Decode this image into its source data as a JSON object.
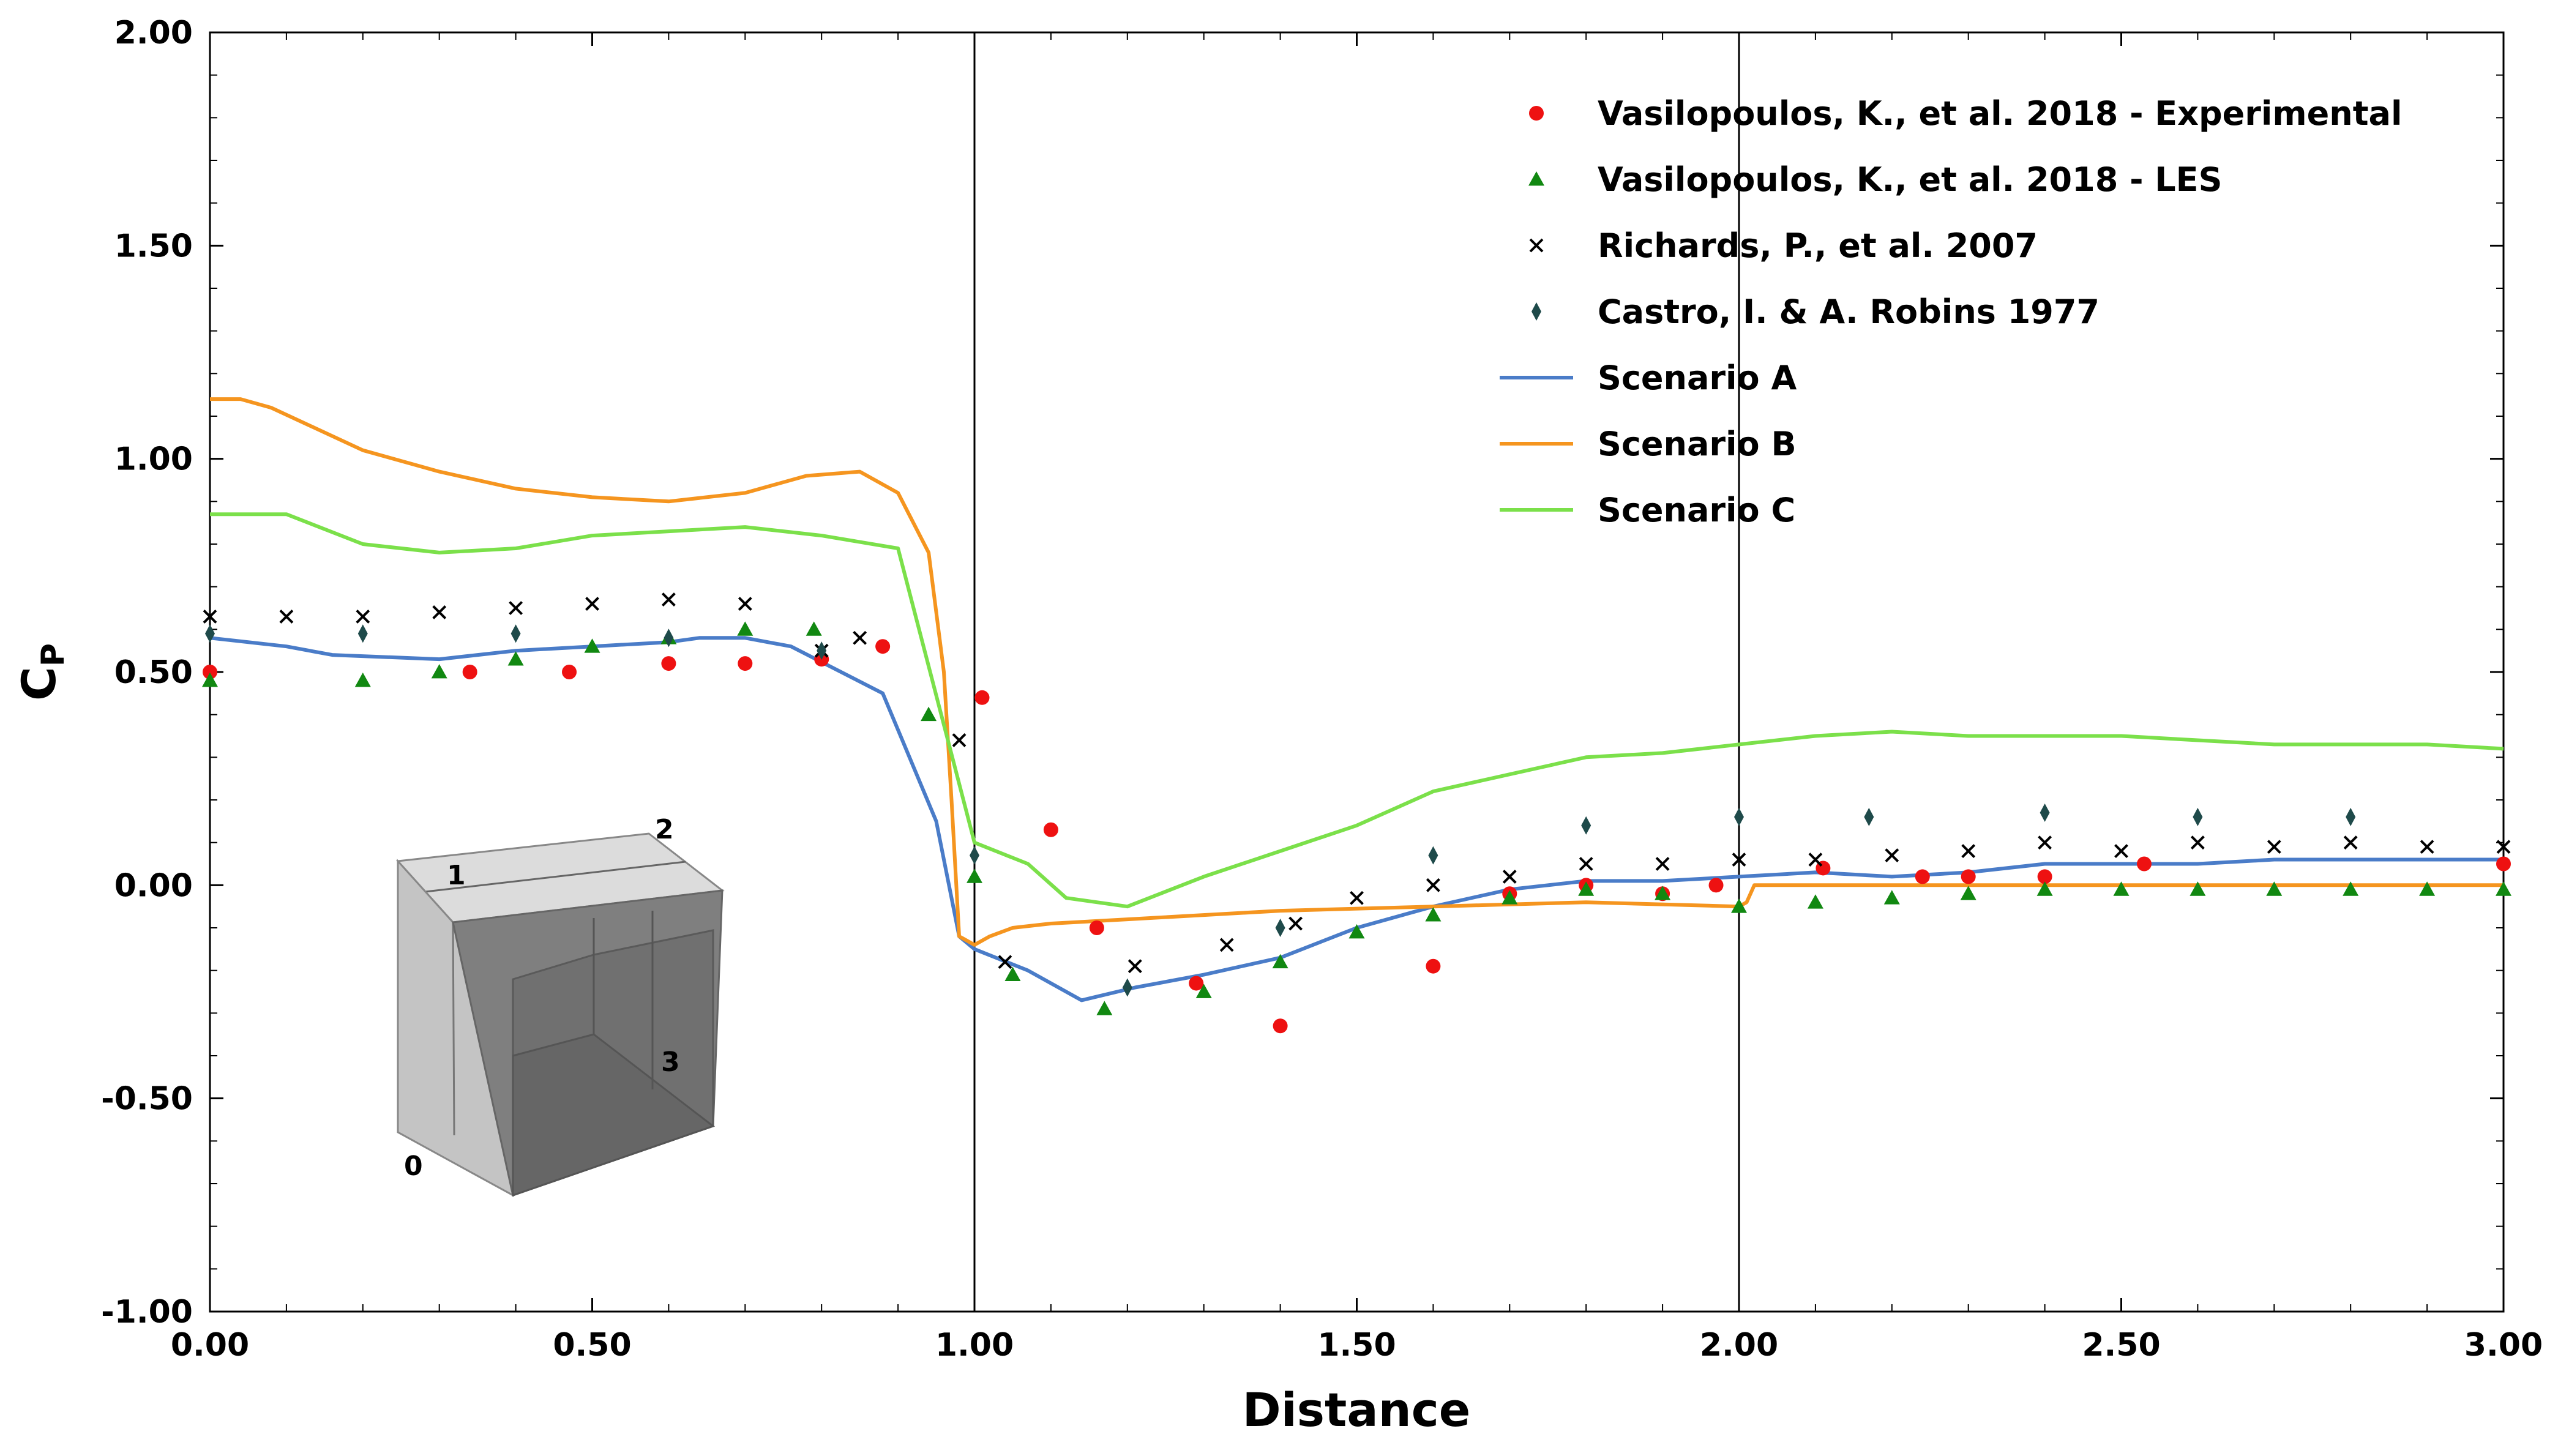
{
  "chart_data": {
    "type": "scatter",
    "title": "",
    "xlabel": "Distance",
    "ylabel_main": "C",
    "ylabel_sub": "P",
    "xlim": [
      0,
      3
    ],
    "ylim": [
      -1,
      2
    ],
    "xticks": [
      0,
      0.5,
      1,
      1.5,
      2,
      2.5,
      3
    ],
    "yticks": [
      -1,
      -0.5,
      0,
      0.5,
      1,
      1.5,
      2
    ],
    "xtick_labels": [
      "0.00",
      "0.50",
      "1.00",
      "1.50",
      "2.00",
      "2.50",
      "3.00"
    ],
    "ytick_labels": [
      "-1.00",
      "-0.50",
      "0.00",
      "0.50",
      "1.00",
      "1.50",
      "2.00"
    ],
    "vlines": [
      1.0,
      2.0
    ],
    "grid": false,
    "legend_position": "top-right",
    "series": [
      {
        "name": "Vasilopoulos, K., et al. 2018 - Experimental",
        "kind": "marker",
        "marker": "circle",
        "color": "#ee1111",
        "x": [
          0.0,
          0.34,
          0.47,
          0.6,
          0.7,
          0.8,
          0.88,
          1.01,
          1.1,
          1.16,
          1.29,
          1.4,
          1.6,
          1.7,
          1.8,
          1.9,
          1.97,
          2.11,
          2.24,
          2.3,
          2.4,
          2.53,
          3.0
        ],
        "y": [
          0.5,
          0.5,
          0.5,
          0.52,
          0.52,
          0.53,
          0.56,
          0.44,
          0.13,
          -0.1,
          -0.23,
          -0.33,
          -0.19,
          -0.02,
          0.0,
          -0.02,
          0.0,
          0.04,
          0.02,
          0.02,
          0.02,
          0.05,
          0.05
        ]
      },
      {
        "name": "Vasilopoulos, K., et al. 2018 - LES",
        "kind": "marker",
        "marker": "triangle",
        "color": "#118811",
        "x": [
          0.0,
          0.2,
          0.3,
          0.4,
          0.5,
          0.6,
          0.7,
          0.79,
          0.94,
          1.0,
          1.05,
          1.17,
          1.3,
          1.4,
          1.5,
          1.6,
          1.7,
          1.8,
          1.9,
          2.0,
          2.1,
          2.2,
          2.3,
          2.4,
          2.5,
          2.6,
          2.7,
          2.8,
          2.9,
          3.0
        ],
        "y": [
          0.48,
          0.48,
          0.5,
          0.53,
          0.56,
          0.58,
          0.6,
          0.6,
          0.4,
          0.02,
          -0.21,
          -0.29,
          -0.25,
          -0.18,
          -0.11,
          -0.07,
          -0.03,
          -0.01,
          -0.02,
          -0.05,
          -0.04,
          -0.03,
          -0.02,
          -0.01,
          -0.01,
          -0.01,
          -0.01,
          -0.01,
          -0.01,
          -0.01
        ]
      },
      {
        "name": "Richards, P., et al. 2007",
        "kind": "marker",
        "marker": "x",
        "color": "#000000",
        "x": [
          0.0,
          0.1,
          0.2,
          0.3,
          0.4,
          0.5,
          0.6,
          0.7,
          0.8,
          0.85,
          0.98,
          1.04,
          1.21,
          1.33,
          1.42,
          1.5,
          1.6,
          1.7,
          1.8,
          1.9,
          2.0,
          2.1,
          2.2,
          2.3,
          2.4,
          2.5,
          2.6,
          2.7,
          2.8,
          2.9,
          3.0
        ],
        "y": [
          0.63,
          0.63,
          0.63,
          0.64,
          0.65,
          0.66,
          0.67,
          0.66,
          0.55,
          0.58,
          0.34,
          -0.18,
          -0.19,
          -0.14,
          -0.09,
          -0.03,
          0.0,
          0.02,
          0.05,
          0.05,
          0.06,
          0.06,
          0.07,
          0.08,
          0.1,
          0.08,
          0.1,
          0.09,
          0.1,
          0.09,
          0.09
        ]
      },
      {
        "name": "Castro, I. & A. Robins 1977",
        "kind": "marker",
        "marker": "diamond",
        "color": "#1e4a4a",
        "x": [
          0.0,
          0.2,
          0.4,
          0.6,
          0.8,
          1.0,
          1.2,
          1.4,
          1.6,
          1.8,
          2.0,
          2.17,
          2.4,
          2.6,
          2.8
        ],
        "y": [
          0.59,
          0.59,
          0.59,
          0.58,
          0.55,
          0.07,
          -0.24,
          -0.1,
          0.07,
          0.14,
          0.16,
          0.16,
          0.17,
          0.16,
          0.16
        ]
      },
      {
        "name": "Scenario A",
        "kind": "line",
        "color": "#4a7cc8",
        "x": [
          0.0,
          0.1,
          0.16,
          0.3,
          0.4,
          0.5,
          0.6,
          0.64,
          0.7,
          0.76,
          0.88,
          0.95,
          0.98,
          1.0,
          1.07,
          1.14,
          1.21,
          1.3,
          1.4,
          1.5,
          1.6,
          1.7,
          1.8,
          1.9,
          2.0,
          2.1,
          2.2,
          2.3,
          2.4,
          2.5,
          2.6,
          2.7,
          2.8,
          2.9,
          3.0
        ],
        "y": [
          0.58,
          0.56,
          0.54,
          0.53,
          0.55,
          0.56,
          0.57,
          0.58,
          0.58,
          0.56,
          0.45,
          0.15,
          -0.12,
          -0.15,
          -0.2,
          -0.27,
          -0.24,
          -0.21,
          -0.17,
          -0.1,
          -0.05,
          -0.01,
          0.01,
          0.01,
          0.02,
          0.03,
          0.02,
          0.03,
          0.05,
          0.05,
          0.05,
          0.06,
          0.06,
          0.06,
          0.06
        ]
      },
      {
        "name": "Scenario B",
        "kind": "line",
        "color": "#f5951f",
        "x": [
          0.0,
          0.04,
          0.08,
          0.2,
          0.3,
          0.4,
          0.5,
          0.6,
          0.7,
          0.78,
          0.85,
          0.9,
          0.94,
          0.96,
          0.97,
          0.98,
          1.0,
          1.02,
          1.05,
          1.1,
          1.2,
          1.4,
          1.6,
          1.8,
          2.0,
          2.01,
          2.02,
          2.1,
          2.4,
          2.6,
          2.8,
          3.0
        ],
        "y": [
          1.14,
          1.14,
          1.12,
          1.02,
          0.97,
          0.93,
          0.91,
          0.9,
          0.92,
          0.96,
          0.97,
          0.92,
          0.78,
          0.5,
          0.2,
          -0.12,
          -0.14,
          -0.12,
          -0.1,
          -0.09,
          -0.08,
          -0.06,
          -0.05,
          -0.04,
          -0.05,
          -0.04,
          0.0,
          0.0,
          0.0,
          0.0,
          0.0,
          0.0
        ]
      },
      {
        "name": "Scenario C",
        "kind": "line",
        "color": "#7be04a",
        "x": [
          0.0,
          0.1,
          0.2,
          0.3,
          0.4,
          0.5,
          0.6,
          0.7,
          0.8,
          0.9,
          1.0,
          1.07,
          1.12,
          1.2,
          1.3,
          1.4,
          1.5,
          1.6,
          1.7,
          1.8,
          1.9,
          2.0,
          2.1,
          2.2,
          2.3,
          2.4,
          2.5,
          2.6,
          2.7,
          2.8,
          2.9,
          3.0
        ],
        "y": [
          0.87,
          0.87,
          0.8,
          0.78,
          0.79,
          0.82,
          0.83,
          0.84,
          0.82,
          0.79,
          0.1,
          0.05,
          -0.03,
          -0.05,
          0.02,
          0.08,
          0.14,
          0.22,
          0.26,
          0.3,
          0.31,
          0.33,
          0.35,
          0.36,
          0.35,
          0.35,
          0.35,
          0.34,
          0.33,
          0.33,
          0.33,
          0.32
        ]
      }
    ],
    "inset": {
      "description": "building cube schematic",
      "labels": [
        "1",
        "2",
        "3",
        "0"
      ]
    }
  }
}
